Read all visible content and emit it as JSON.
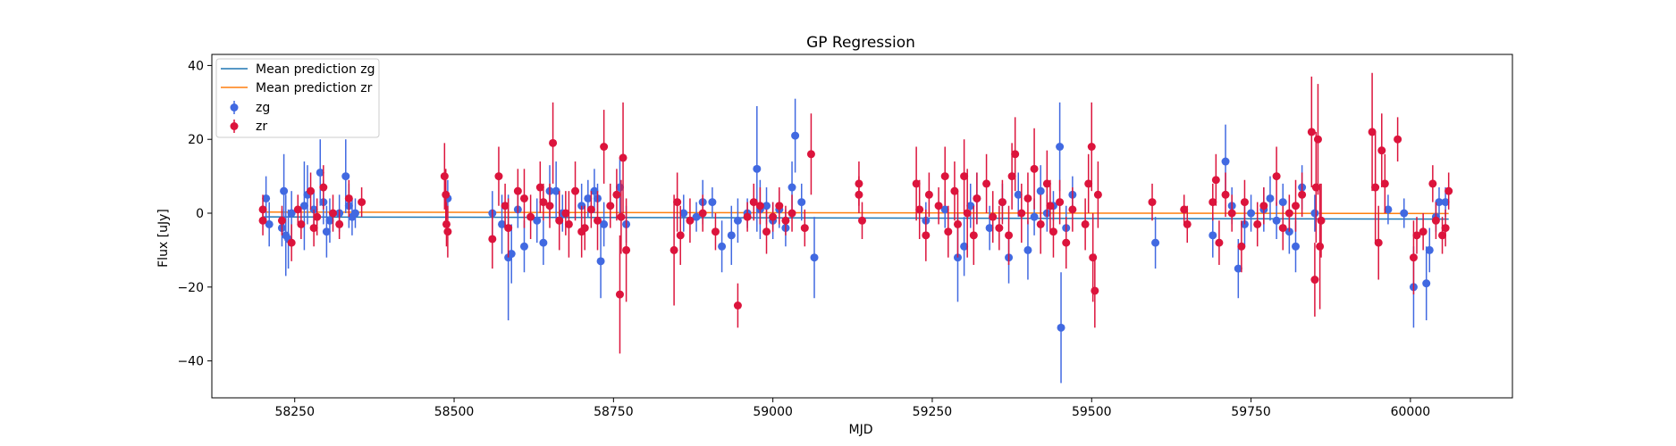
{
  "chart_data": {
    "type": "scatter",
    "title": "GP Regression",
    "xlabel": "MJD",
    "ylabel": "Flux [uJy]",
    "xlim": [
      58120,
      60160
    ],
    "ylim": [
      -50,
      43
    ],
    "xticks": [
      58250,
      58500,
      58750,
      59000,
      59250,
      59500,
      59750,
      60000
    ],
    "yticks": [
      -40,
      -20,
      0,
      20,
      40
    ],
    "grid": false,
    "legend_position": "top-left",
    "lines": [
      {
        "name": "Mean prediction zg",
        "color": "#1f77b4",
        "x": [
          58200,
          60060
        ],
        "y": [
          -1.0,
          -1.6
        ]
      },
      {
        "name": "Mean prediction zr",
        "color": "#ff7f0e",
        "x": [
          58200,
          60060
        ],
        "y": [
          0.3,
          -0.1
        ]
      }
    ],
    "series": [
      {
        "name": "zg",
        "color": "#4169e1",
        "points": [
          [
            58205,
            4,
            6
          ],
          [
            58210,
            -3,
            6
          ],
          [
            58230,
            -4,
            5
          ],
          [
            58233,
            6,
            10
          ],
          [
            58236,
            -6,
            11
          ],
          [
            58240,
            -7,
            8
          ],
          [
            58245,
            0,
            6
          ],
          [
            58265,
            2,
            12
          ],
          [
            58270,
            5,
            8
          ],
          [
            58280,
            1,
            5
          ],
          [
            58290,
            11,
            9
          ],
          [
            58295,
            3,
            6
          ],
          [
            58300,
            -5,
            7
          ],
          [
            58305,
            -2,
            6
          ],
          [
            58320,
            0,
            5
          ],
          [
            58330,
            10,
            10
          ],
          [
            58335,
            2,
            6
          ],
          [
            58340,
            -1,
            5
          ],
          [
            58345,
            0,
            4
          ],
          [
            58490,
            4,
            5
          ],
          [
            58560,
            0,
            6
          ],
          [
            58575,
            -3,
            8
          ],
          [
            58585,
            -12,
            17
          ],
          [
            58590,
            -11,
            8
          ],
          [
            58600,
            1,
            5
          ],
          [
            58610,
            -9,
            7
          ],
          [
            58630,
            -2,
            6
          ],
          [
            58640,
            -8,
            6
          ],
          [
            58650,
            6,
            7
          ],
          [
            58660,
            6,
            8
          ],
          [
            58670,
            0,
            5
          ],
          [
            58700,
            2,
            6
          ],
          [
            58710,
            4,
            5
          ],
          [
            58720,
            6,
            6
          ],
          [
            58725,
            4,
            4
          ],
          [
            58730,
            -13,
            10
          ],
          [
            58735,
            -3,
            6
          ],
          [
            58760,
            7,
            8
          ],
          [
            58770,
            -3,
            5
          ],
          [
            58860,
            0,
            5
          ],
          [
            58880,
            -1,
            4
          ],
          [
            58890,
            3,
            6
          ],
          [
            58905,
            3,
            4
          ],
          [
            58920,
            -9,
            7
          ],
          [
            58935,
            -6,
            8
          ],
          [
            58945,
            -2,
            6
          ],
          [
            58960,
            0,
            4
          ],
          [
            58975,
            12,
            17
          ],
          [
            58980,
            1,
            8
          ],
          [
            58990,
            2,
            5
          ],
          [
            59000,
            -2,
            5
          ],
          [
            59010,
            1,
            5
          ],
          [
            59020,
            -4,
            5
          ],
          [
            59030,
            7,
            7
          ],
          [
            59035,
            21,
            10
          ],
          [
            59045,
            3,
            5
          ],
          [
            59065,
            -12,
            11
          ],
          [
            59240,
            -2,
            5
          ],
          [
            59270,
            1,
            5
          ],
          [
            59290,
            -12,
            12
          ],
          [
            59300,
            -9,
            8
          ],
          [
            59310,
            2,
            6
          ],
          [
            59320,
            4,
            7
          ],
          [
            59340,
            -4,
            6
          ],
          [
            59360,
            3,
            5
          ],
          [
            59370,
            -12,
            7
          ],
          [
            59385,
            5,
            6
          ],
          [
            59400,
            -10,
            8
          ],
          [
            59410,
            -1,
            5
          ],
          [
            59420,
            6,
            7
          ],
          [
            59430,
            0,
            5
          ],
          [
            59440,
            2,
            4
          ],
          [
            59450,
            18,
            12
          ],
          [
            59452,
            -31,
            15
          ],
          [
            59460,
            -4,
            6
          ],
          [
            59470,
            5,
            5
          ],
          [
            59600,
            -8,
            7
          ],
          [
            59690,
            -6,
            6
          ],
          [
            59710,
            14,
            10
          ],
          [
            59720,
            2,
            5
          ],
          [
            59730,
            -15,
            8
          ],
          [
            59740,
            -3,
            6
          ],
          [
            59750,
            0,
            5
          ],
          [
            59770,
            1,
            6
          ],
          [
            59780,
            4,
            6
          ],
          [
            59790,
            -2,
            5
          ],
          [
            59800,
            3,
            5
          ],
          [
            59810,
            -5,
            6
          ],
          [
            59820,
            -9,
            7
          ],
          [
            59830,
            7,
            6
          ],
          [
            59850,
            0,
            5
          ],
          [
            59965,
            1,
            4
          ],
          [
            59990,
            0,
            4
          ],
          [
            60005,
            -20,
            11
          ],
          [
            60025,
            -19,
            10
          ],
          [
            60030,
            -10,
            6
          ],
          [
            60040,
            -1,
            4
          ],
          [
            60045,
            3,
            4
          ],
          [
            60055,
            3,
            4
          ]
        ]
      },
      {
        "name": "zr",
        "color": "#dc143c",
        "points": [
          [
            58200,
            1,
            4
          ],
          [
            58200,
            -2,
            4
          ],
          [
            58230,
            -2,
            4
          ],
          [
            58245,
            -8,
            5
          ],
          [
            58255,
            1,
            4
          ],
          [
            58260,
            -3,
            4
          ],
          [
            58275,
            6,
            5
          ],
          [
            58280,
            -4,
            5
          ],
          [
            58285,
            -1,
            5
          ],
          [
            58295,
            7,
            6
          ],
          [
            58310,
            0,
            5
          ],
          [
            58320,
            -3,
            4
          ],
          [
            58335,
            4,
            5
          ],
          [
            58355,
            3,
            4
          ],
          [
            58485,
            10,
            9
          ],
          [
            58487,
            5,
            7
          ],
          [
            58488,
            -3,
            6
          ],
          [
            58490,
            -5,
            7
          ],
          [
            58560,
            -7,
            8
          ],
          [
            58570,
            10,
            8
          ],
          [
            58580,
            2,
            6
          ],
          [
            58585,
            -4,
            8
          ],
          [
            58600,
            6,
            6
          ],
          [
            58610,
            4,
            8
          ],
          [
            58620,
            -1,
            6
          ],
          [
            58635,
            7,
            7
          ],
          [
            58640,
            3,
            5
          ],
          [
            58650,
            2,
            6
          ],
          [
            58655,
            19,
            11
          ],
          [
            58665,
            -2,
            8
          ],
          [
            58675,
            0,
            6
          ],
          [
            58680,
            -3,
            9
          ],
          [
            58690,
            6,
            8
          ],
          [
            58700,
            -5,
            7
          ],
          [
            58705,
            -4,
            6
          ],
          [
            58715,
            1,
            5
          ],
          [
            58725,
            -2,
            8
          ],
          [
            58735,
            18,
            10
          ],
          [
            58745,
            2,
            6
          ],
          [
            58755,
            5,
            7
          ],
          [
            58760,
            -22,
            16
          ],
          [
            58762,
            -1,
            10
          ],
          [
            58765,
            15,
            15
          ],
          [
            58770,
            -10,
            14
          ],
          [
            58845,
            -10,
            15
          ],
          [
            58850,
            3,
            8
          ],
          [
            58855,
            -6,
            8
          ],
          [
            58870,
            -2,
            6
          ],
          [
            58890,
            0,
            5
          ],
          [
            58910,
            -5,
            5
          ],
          [
            58945,
            -25,
            6
          ],
          [
            58960,
            -1,
            4
          ],
          [
            58970,
            3,
            5
          ],
          [
            58980,
            2,
            5
          ],
          [
            58990,
            -5,
            6
          ],
          [
            59000,
            -1,
            4
          ],
          [
            59010,
            2,
            5
          ],
          [
            59020,
            -2,
            4
          ],
          [
            59030,
            0,
            5
          ],
          [
            59050,
            -4,
            5
          ],
          [
            59060,
            16,
            11
          ],
          [
            59135,
            8,
            6
          ],
          [
            59135,
            5,
            5
          ],
          [
            59140,
            -2,
            5
          ],
          [
            59225,
            8,
            10
          ],
          [
            59230,
            1,
            8
          ],
          [
            59240,
            -6,
            7
          ],
          [
            59245,
            5,
            6
          ],
          [
            59260,
            2,
            5
          ],
          [
            59270,
            10,
            8
          ],
          [
            59275,
            -5,
            7
          ],
          [
            59285,
            6,
            8
          ],
          [
            59290,
            -3,
            9
          ],
          [
            59300,
            10,
            10
          ],
          [
            59305,
            0,
            12
          ],
          [
            59315,
            -6,
            8
          ],
          [
            59320,
            4,
            7
          ],
          [
            59335,
            8,
            8
          ],
          [
            59345,
            -1,
            7
          ],
          [
            59355,
            -4,
            6
          ],
          [
            59360,
            3,
            6
          ],
          [
            59370,
            -6,
            8
          ],
          [
            59375,
            10,
            9
          ],
          [
            59380,
            16,
            10
          ],
          [
            59390,
            0,
            8
          ],
          [
            59400,
            4,
            7
          ],
          [
            59410,
            12,
            11
          ],
          [
            59420,
            -3,
            8
          ],
          [
            59430,
            8,
            9
          ],
          [
            59435,
            2,
            7
          ],
          [
            59440,
            -5,
            7
          ],
          [
            59450,
            3,
            6
          ],
          [
            59460,
            -8,
            7
          ],
          [
            59470,
            1,
            6
          ],
          [
            59490,
            -3,
            7
          ],
          [
            59495,
            8,
            8
          ],
          [
            59500,
            18,
            12
          ],
          [
            59502,
            -12,
            12
          ],
          [
            59505,
            -21,
            10
          ],
          [
            59510,
            5,
            9
          ],
          [
            59595,
            3,
            5
          ],
          [
            59645,
            1,
            4
          ],
          [
            59650,
            -3,
            5
          ],
          [
            59690,
            3,
            5
          ],
          [
            59695,
            9,
            7
          ],
          [
            59700,
            -8,
            6
          ],
          [
            59710,
            5,
            6
          ],
          [
            59720,
            0,
            5
          ],
          [
            59735,
            -9,
            7
          ],
          [
            59740,
            3,
            6
          ],
          [
            59760,
            -3,
            6
          ],
          [
            59770,
            2,
            5
          ],
          [
            59790,
            10,
            8
          ],
          [
            59800,
            -4,
            6
          ],
          [
            59810,
            0,
            5
          ],
          [
            59820,
            2,
            7
          ],
          [
            59830,
            5,
            6
          ],
          [
            59845,
            22,
            15
          ],
          [
            59850,
            -18,
            10
          ],
          [
            59852,
            7,
            15
          ],
          [
            59855,
            20,
            15
          ],
          [
            59858,
            -9,
            17
          ],
          [
            59860,
            -2,
            10
          ],
          [
            59940,
            22,
            16
          ],
          [
            59945,
            7,
            15
          ],
          [
            59950,
            -8,
            10
          ],
          [
            59955,
            17,
            10
          ],
          [
            59960,
            8,
            8
          ],
          [
            59980,
            20,
            6
          ],
          [
            60005,
            -12,
            10
          ],
          [
            60010,
            -6,
            5
          ],
          [
            60020,
            -5,
            5
          ],
          [
            60035,
            8,
            5
          ],
          [
            60040,
            -2,
            5
          ],
          [
            60050,
            -6,
            5
          ],
          [
            60055,
            -4,
            5
          ],
          [
            60060,
            6,
            5
          ]
        ]
      }
    ]
  }
}
